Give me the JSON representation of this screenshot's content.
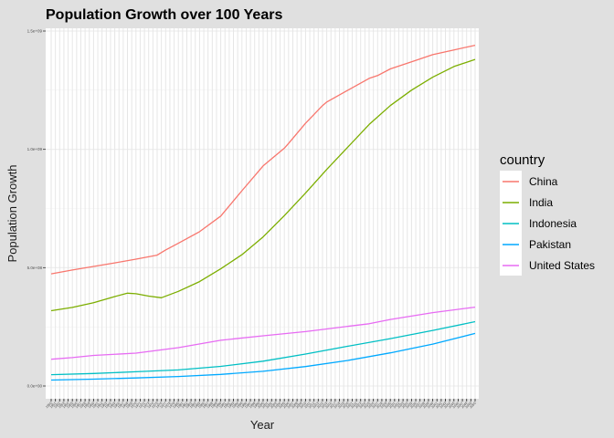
{
  "chart_data": {
    "type": "line",
    "title": "Population Growth over 100 Years",
    "xlabel": "Year",
    "ylabel": "Population Growth",
    "xlim": [
      1950,
      2050
    ],
    "ylim": [
      0,
      1500000000
    ],
    "x_ticks": [
      1950,
      1951,
      1952,
      1953,
      1954,
      1955,
      1956,
      1957,
      1958,
      1959,
      1960,
      1961,
      1962,
      1963,
      1964,
      1965,
      1966,
      1967,
      1968,
      1969,
      1970,
      1971,
      1972,
      1973,
      1974,
      1975,
      1976,
      1977,
      1978,
      1979,
      1980,
      1981,
      1982,
      1983,
      1984,
      1985,
      1986,
      1987,
      1988,
      1989,
      1990,
      1991,
      1992,
      1993,
      1994,
      1995,
      1996,
      1997,
      1998,
      1999,
      2000,
      2001,
      2002,
      2003,
      2004,
      2005,
      2006,
      2007,
      2008,
      2009,
      2010,
      2011,
      2012,
      2013,
      2014,
      2015,
      2016,
      2017,
      2018,
      2019,
      2020,
      2021,
      2022,
      2023,
      2024,
      2025,
      2026,
      2027,
      2028,
      2029,
      2030,
      2031,
      2032,
      2033,
      2034,
      2035,
      2036,
      2037,
      2038,
      2039,
      2040,
      2041,
      2042,
      2043,
      2044,
      2045,
      2046,
      2047,
      2048,
      2049,
      2050
    ],
    "y_ticks": [
      {
        "value": 0,
        "label": "0.0e+00"
      },
      {
        "value": 500000000,
        "label": "5.0e+08"
      },
      {
        "value": 1000000000,
        "label": "1.0e+09"
      },
      {
        "value": 1500000000,
        "label": "1.5e+09"
      }
    ],
    "grid": true,
    "legend_title": "country",
    "legend_position": "right",
    "series": [
      {
        "name": "China",
        "color": "#F8766D",
        "points": [
          [
            1950,
            474000000
          ],
          [
            1955,
            490000000
          ],
          [
            1960,
            505000000
          ],
          [
            1965,
            520000000
          ],
          [
            1970,
            536000000
          ],
          [
            1975,
            553000000
          ],
          [
            1977,
            575000000
          ],
          [
            1980,
            603000000
          ],
          [
            1985,
            652000000
          ],
          [
            1990,
            718000000
          ],
          [
            1995,
            825000000
          ],
          [
            2000,
            930000000
          ],
          [
            2005,
            1005000000
          ],
          [
            2006,
            1025000000
          ],
          [
            2010,
            1110000000
          ],
          [
            2014,
            1185000000
          ],
          [
            2015,
            1200000000
          ],
          [
            2020,
            1250000000
          ],
          [
            2025,
            1300000000
          ],
          [
            2027,
            1312000000
          ],
          [
            2030,
            1340000000
          ],
          [
            2035,
            1370000000
          ],
          [
            2040,
            1400000000
          ],
          [
            2045,
            1420000000
          ],
          [
            2050,
            1440000000
          ]
        ]
      },
      {
        "name": "India",
        "color": "#7CAE00",
        "points": [
          [
            1950,
            318000000
          ],
          [
            1955,
            332000000
          ],
          [
            1960,
            352000000
          ],
          [
            1965,
            378000000
          ],
          [
            1968,
            392000000
          ],
          [
            1970,
            390000000
          ],
          [
            1973,
            380000000
          ],
          [
            1976,
            373000000
          ],
          [
            1980,
            400000000
          ],
          [
            1985,
            441000000
          ],
          [
            1990,
            495000000
          ],
          [
            1995,
            555000000
          ],
          [
            2000,
            630000000
          ],
          [
            2005,
            720000000
          ],
          [
            2010,
            815000000
          ],
          [
            2015,
            915000000
          ],
          [
            2020,
            1010000000
          ],
          [
            2025,
            1105000000
          ],
          [
            2030,
            1185000000
          ],
          [
            2035,
            1250000000
          ],
          [
            2040,
            1305000000
          ],
          [
            2045,
            1350000000
          ],
          [
            2050,
            1380000000
          ]
        ]
      },
      {
        "name": "Indonesia",
        "color": "#00BFC4",
        "points": [
          [
            1950,
            48000000
          ],
          [
            1960,
            53000000
          ],
          [
            1970,
            60000000
          ],
          [
            1980,
            68000000
          ],
          [
            1990,
            83000000
          ],
          [
            2000,
            105000000
          ],
          [
            2010,
            135000000
          ],
          [
            2020,
            168000000
          ],
          [
            2030,
            200000000
          ],
          [
            2040,
            235000000
          ],
          [
            2050,
            272000000
          ]
        ]
      },
      {
        "name": "Pakistan",
        "color": "#00A9FF",
        "points": [
          [
            1950,
            25000000
          ],
          [
            1960,
            29000000
          ],
          [
            1970,
            34000000
          ],
          [
            1980,
            40000000
          ],
          [
            1990,
            49000000
          ],
          [
            2000,
            62000000
          ],
          [
            2010,
            82000000
          ],
          [
            2020,
            108000000
          ],
          [
            2030,
            140000000
          ],
          [
            2040,
            177000000
          ],
          [
            2050,
            222000000
          ]
        ]
      },
      {
        "name": "United States",
        "color": "#E76BF3",
        "points": [
          [
            1950,
            113000000
          ],
          [
            1955,
            120000000
          ],
          [
            1960,
            129000000
          ],
          [
            1970,
            139000000
          ],
          [
            1980,
            162000000
          ],
          [
            1990,
            193000000
          ],
          [
            2000,
            212000000
          ],
          [
            2010,
            230000000
          ],
          [
            2020,
            252000000
          ],
          [
            2025,
            263000000
          ],
          [
            2030,
            281000000
          ],
          [
            2040,
            310000000
          ],
          [
            2050,
            333000000
          ]
        ]
      }
    ]
  }
}
